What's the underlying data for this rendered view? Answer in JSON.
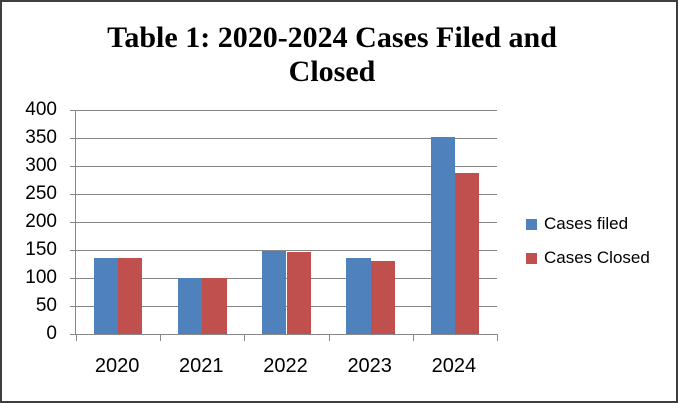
{
  "chart_data": {
    "type": "bar",
    "title": "Table 1: 2020-2024 Cases Filed and Closed",
    "title_lines": [
      "Table 1: 2020-2024 Cases Filed and",
      "Closed"
    ],
    "categories": [
      "2020",
      "2021",
      "2022",
      "2023",
      "2024"
    ],
    "series": [
      {
        "name": "Cases filed",
        "color": "#4F81BD",
        "values": [
          135,
          100,
          149,
          135,
          352
        ]
      },
      {
        "name": "Cases Closed",
        "color": "#C0504D",
        "values": [
          135,
          100,
          146,
          131,
          288
        ]
      }
    ],
    "xlabel": "",
    "ylabel": "",
    "ylim": [
      0,
      400
    ],
    "ytick_step": 50,
    "y_ticks": [
      400,
      350,
      300,
      250,
      200,
      150,
      100,
      50,
      0
    ],
    "grid": true,
    "gridline_color": "#878787",
    "axis_color": "#878787",
    "legend_position": "right"
  }
}
